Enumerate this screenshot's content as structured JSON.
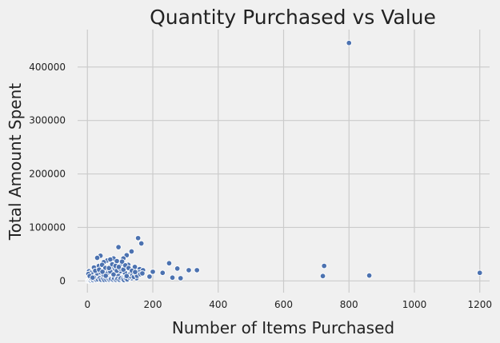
{
  "chart_data": {
    "type": "scatter",
    "title": "Quantity Purchased vs Value",
    "xlabel": "Number of Items Purchased",
    "ylabel": "Total Amount Spent",
    "xlim": [
      -30,
      1230
    ],
    "ylim": [
      -22000,
      470000
    ],
    "xticks": [
      0,
      200,
      400,
      600,
      800,
      1000,
      1200
    ],
    "yticks": [
      0,
      100000,
      200000,
      300000,
      400000
    ],
    "xtick_labels": [
      "0",
      "200",
      "400",
      "600",
      "800",
      "1000",
      "1200"
    ],
    "ytick_labels": [
      "0",
      "100000",
      "200000",
      "300000",
      "400000"
    ],
    "grid": true,
    "colors": {
      "points": "#4c72b0",
      "grid": "#cbcbcb",
      "background": "#f0f0f0"
    },
    "series": [
      {
        "points": [
          [
            800,
            445000
          ],
          [
            1200,
            15000
          ],
          [
            862,
            10000
          ],
          [
            724,
            28000
          ],
          [
            720,
            9000
          ],
          [
            155,
            80000
          ],
          [
            165,
            70000
          ],
          [
            95,
            63000
          ],
          [
            135,
            55000
          ],
          [
            120,
            48000
          ],
          [
            110,
            42000
          ],
          [
            80,
            42000
          ],
          [
            40,
            47000
          ],
          [
            30,
            43000
          ],
          [
            60,
            38000
          ],
          [
            50,
            35000
          ],
          [
            70,
            40000
          ],
          [
            90,
            37000
          ],
          [
            105,
            33000
          ],
          [
            125,
            30000
          ],
          [
            145,
            26000
          ],
          [
            160,
            22000
          ],
          [
            170,
            20000
          ],
          [
            250,
            33000
          ],
          [
            275,
            23000
          ],
          [
            310,
            20000
          ],
          [
            335,
            20000
          ],
          [
            230,
            15000
          ],
          [
            200,
            17000
          ],
          [
            190,
            8000
          ],
          [
            260,
            6000
          ],
          [
            285,
            5000
          ],
          [
            150,
            5000
          ],
          [
            20,
            25000
          ],
          [
            35,
            28000
          ],
          [
            45,
            30000
          ],
          [
            55,
            24000
          ],
          [
            65,
            20000
          ],
          [
            75,
            26000
          ],
          [
            85,
            22000
          ],
          [
            100,
            18000
          ],
          [
            115,
            15000
          ],
          [
            130,
            12000
          ],
          [
            140,
            10000
          ],
          [
            5,
            18000
          ],
          [
            10,
            15000
          ],
          [
            15,
            12000
          ],
          [
            25,
            10000
          ],
          [
            35,
            8000
          ],
          [
            45,
            6000
          ],
          [
            55,
            4000
          ],
          [
            65,
            3000
          ],
          [
            75,
            5000
          ],
          [
            85,
            7000
          ],
          [
            95,
            9000
          ],
          [
            105,
            6000
          ],
          [
            115,
            4000
          ],
          [
            125,
            3000
          ],
          [
            135,
            5000
          ],
          [
            2,
            500
          ],
          [
            4,
            1000
          ],
          [
            6,
            1500
          ],
          [
            8,
            2000
          ],
          [
            10,
            800
          ],
          [
            12,
            2500
          ],
          [
            14,
            3500
          ],
          [
            18,
            1200
          ],
          [
            22,
            2800
          ],
          [
            26,
            4200
          ],
          [
            28,
            1800
          ],
          [
            32,
            3000
          ],
          [
            38,
            5000
          ],
          [
            42,
            2200
          ],
          [
            48,
            3800
          ],
          [
            52,
            1500
          ],
          [
            58,
            2600
          ],
          [
            62,
            5200
          ],
          [
            68,
            1900
          ],
          [
            72,
            3300
          ],
          [
            78,
            2400
          ],
          [
            82,
            4400
          ],
          [
            88,
            1700
          ],
          [
            92,
            3600
          ],
          [
            98,
            2100
          ],
          [
            102,
            4800
          ],
          [
            108,
            2900
          ],
          [
            112,
            1600
          ],
          [
            118,
            3900
          ],
          [
            122,
            2700
          ],
          [
            128,
            6500
          ],
          [
            132,
            8500
          ],
          [
            138,
            11000
          ],
          [
            142,
            7500
          ],
          [
            148,
            13000
          ],
          [
            152,
            9500
          ],
          [
            158,
            16000
          ],
          [
            162,
            12500
          ],
          [
            168,
            14000
          ],
          [
            20,
            7000
          ],
          [
            30,
            14000
          ],
          [
            40,
            16000
          ],
          [
            50,
            11000
          ],
          [
            60,
            13500
          ],
          [
            70,
            17500
          ],
          [
            80,
            12000
          ],
          [
            90,
            19000
          ],
          [
            100,
            23000
          ],
          [
            110,
            21000
          ],
          [
            120,
            9000
          ],
          [
            3,
            13000
          ],
          [
            7,
            9000
          ],
          [
            16,
            6000
          ],
          [
            24,
            19000
          ],
          [
            36,
            21000
          ],
          [
            46,
            17000
          ],
          [
            56,
            9500
          ],
          [
            66,
            24000
          ],
          [
            76,
            31000
          ],
          [
            86,
            28000
          ],
          [
            96,
            26000
          ],
          [
            106,
            36000
          ],
          [
            116,
            29000
          ],
          [
            126,
            24000
          ],
          [
            136,
            19000
          ],
          [
            146,
            16500
          ]
        ]
      }
    ]
  }
}
